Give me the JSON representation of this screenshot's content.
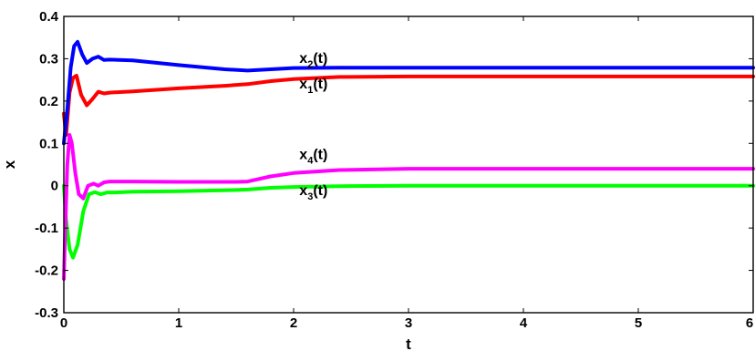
{
  "chart_data": {
    "type": "line",
    "title": "",
    "xlabel": "t",
    "ylabel": "x",
    "xlim": [
      0,
      6
    ],
    "ylim": [
      -0.3,
      0.4
    ],
    "xticks": [
      "0",
      "1",
      "2",
      "3",
      "4",
      "5",
      "6"
    ],
    "yticks": [
      "-0.3",
      "-0.2",
      "-0.1",
      "0",
      "0.1",
      "0.2",
      "0.3",
      "0.4"
    ],
    "grid": false,
    "legend": "none",
    "series": [
      {
        "color": "#ff0000",
        "x": [
          0,
          0.02,
          0.05,
          0.08,
          0.11,
          0.15,
          0.2,
          0.25,
          0.3,
          0.35,
          0.4,
          0.6,
          1.0,
          1.4,
          1.6,
          1.8,
          2.0,
          2.4,
          3.0,
          4.0,
          5.0,
          6.0
        ],
        "y": [
          0.17,
          0.12,
          0.22,
          0.255,
          0.26,
          0.215,
          0.19,
          0.205,
          0.222,
          0.218,
          0.22,
          0.223,
          0.23,
          0.236,
          0.24,
          0.247,
          0.252,
          0.257,
          0.258,
          0.258,
          0.258,
          0.258
        ]
      },
      {
        "color": "#0000ff",
        "x": [
          0,
          0.03,
          0.06,
          0.09,
          0.12,
          0.16,
          0.2,
          0.25,
          0.3,
          0.35,
          0.4,
          0.6,
          1.0,
          1.4,
          1.6,
          1.8,
          2.0,
          2.4,
          3.0,
          4.0,
          5.0,
          6.0
        ],
        "y": [
          0.1,
          0.18,
          0.28,
          0.33,
          0.34,
          0.31,
          0.29,
          0.3,
          0.305,
          0.297,
          0.298,
          0.296,
          0.285,
          0.275,
          0.272,
          0.275,
          0.278,
          0.279,
          0.279,
          0.279,
          0.279,
          0.279
        ]
      },
      {
        "color": "#00ff00",
        "x": [
          0,
          0.02,
          0.05,
          0.08,
          0.12,
          0.17,
          0.22,
          0.27,
          0.32,
          0.38,
          0.45,
          0.6,
          1.0,
          1.5,
          1.6,
          1.8,
          2.0,
          2.4,
          3.0,
          4.0,
          5.0,
          6.0
        ],
        "y": [
          0.0,
          -0.08,
          -0.15,
          -0.17,
          -0.14,
          -0.06,
          -0.02,
          -0.015,
          -0.02,
          -0.016,
          -0.016,
          -0.014,
          -0.013,
          -0.01,
          -0.009,
          -0.005,
          -0.003,
          -0.001,
          0.0,
          0.0,
          0.0,
          0.0
        ]
      },
      {
        "color": "#ff00ff",
        "x": [
          0,
          0.01,
          0.03,
          0.05,
          0.07,
          0.1,
          0.13,
          0.17,
          0.21,
          0.26,
          0.3,
          0.35,
          0.4,
          0.6,
          1.0,
          1.5,
          1.6,
          1.8,
          2.0,
          2.4,
          3.0,
          4.0,
          5.0,
          6.0
        ],
        "y": [
          -0.22,
          -0.12,
          0.05,
          0.12,
          0.1,
          0.03,
          -0.02,
          -0.03,
          0.0,
          0.005,
          0.0,
          0.008,
          0.01,
          0.01,
          0.009,
          0.009,
          0.01,
          0.022,
          0.03,
          0.037,
          0.04,
          0.04,
          0.04,
          0.04
        ]
      }
    ],
    "annotations": [
      {
        "text": "x",
        "sub": "2",
        "tail": "(t)",
        "x": 2.05,
        "y": 0.29
      },
      {
        "text": "x",
        "sub": "1",
        "tail": "(t)",
        "x": 2.05,
        "y": 0.23
      },
      {
        "text": "x",
        "sub": "4",
        "tail": "(t)",
        "x": 2.05,
        "y": 0.063
      },
      {
        "text": "x",
        "sub": "3",
        "tail": "(t)",
        "x": 2.05,
        "y": -0.022
      }
    ]
  }
}
